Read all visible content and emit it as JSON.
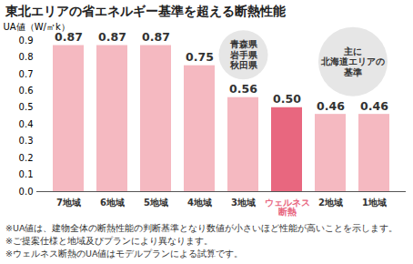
{
  "chart_data": {
    "type": "bar",
    "title": "東北エリアの省エネルギー基準を超える断熱性能",
    "y_label": "UA値（W/㎡k）",
    "categories": [
      "7地域",
      "6地域",
      "5地域",
      "4地域",
      "3地域",
      "ウェルネス\n断熱",
      "2地域",
      "1地域"
    ],
    "values": [
      0.87,
      0.87,
      0.87,
      0.75,
      0.56,
      0.5,
      0.46,
      0.46
    ],
    "value_labels": [
      "0.87",
      "0.87",
      "0.87",
      "0.75",
      "0.56",
      "0.50",
      "0.46",
      "0.46"
    ],
    "colors": [
      "#f5b9c1",
      "#f5b9c1",
      "#f5b9c1",
      "#f5b9c1",
      "#f5b9c1",
      "#e8677f",
      "#f5b9c1",
      "#f5b9c1"
    ],
    "data_labels": true,
    "grid": false,
    "ylim": [
      0,
      0.9
    ],
    "yticks": [
      0,
      0.1,
      0.2,
      0.3,
      0.4,
      0.5,
      0.6,
      0.7,
      0.8,
      0.9
    ],
    "annotations": [
      {
        "text": "青森県\n岩手県\n秋田県",
        "categories": [
          "3地域"
        ]
      },
      {
        "text": "主に\n北海道エリアの\n基準",
        "categories": [
          "2地域",
          "1地域"
        ]
      }
    ],
    "notes": [
      "※UA値は、建物全体の断熱性能の判断基準となり数値が小さいほど性能が高いことを示します。",
      "※ご提案仕様と地域及びプランにより異なります。",
      "※ウェルネス断熱のUA値はモデルプランによる試算です。"
    ]
  }
}
